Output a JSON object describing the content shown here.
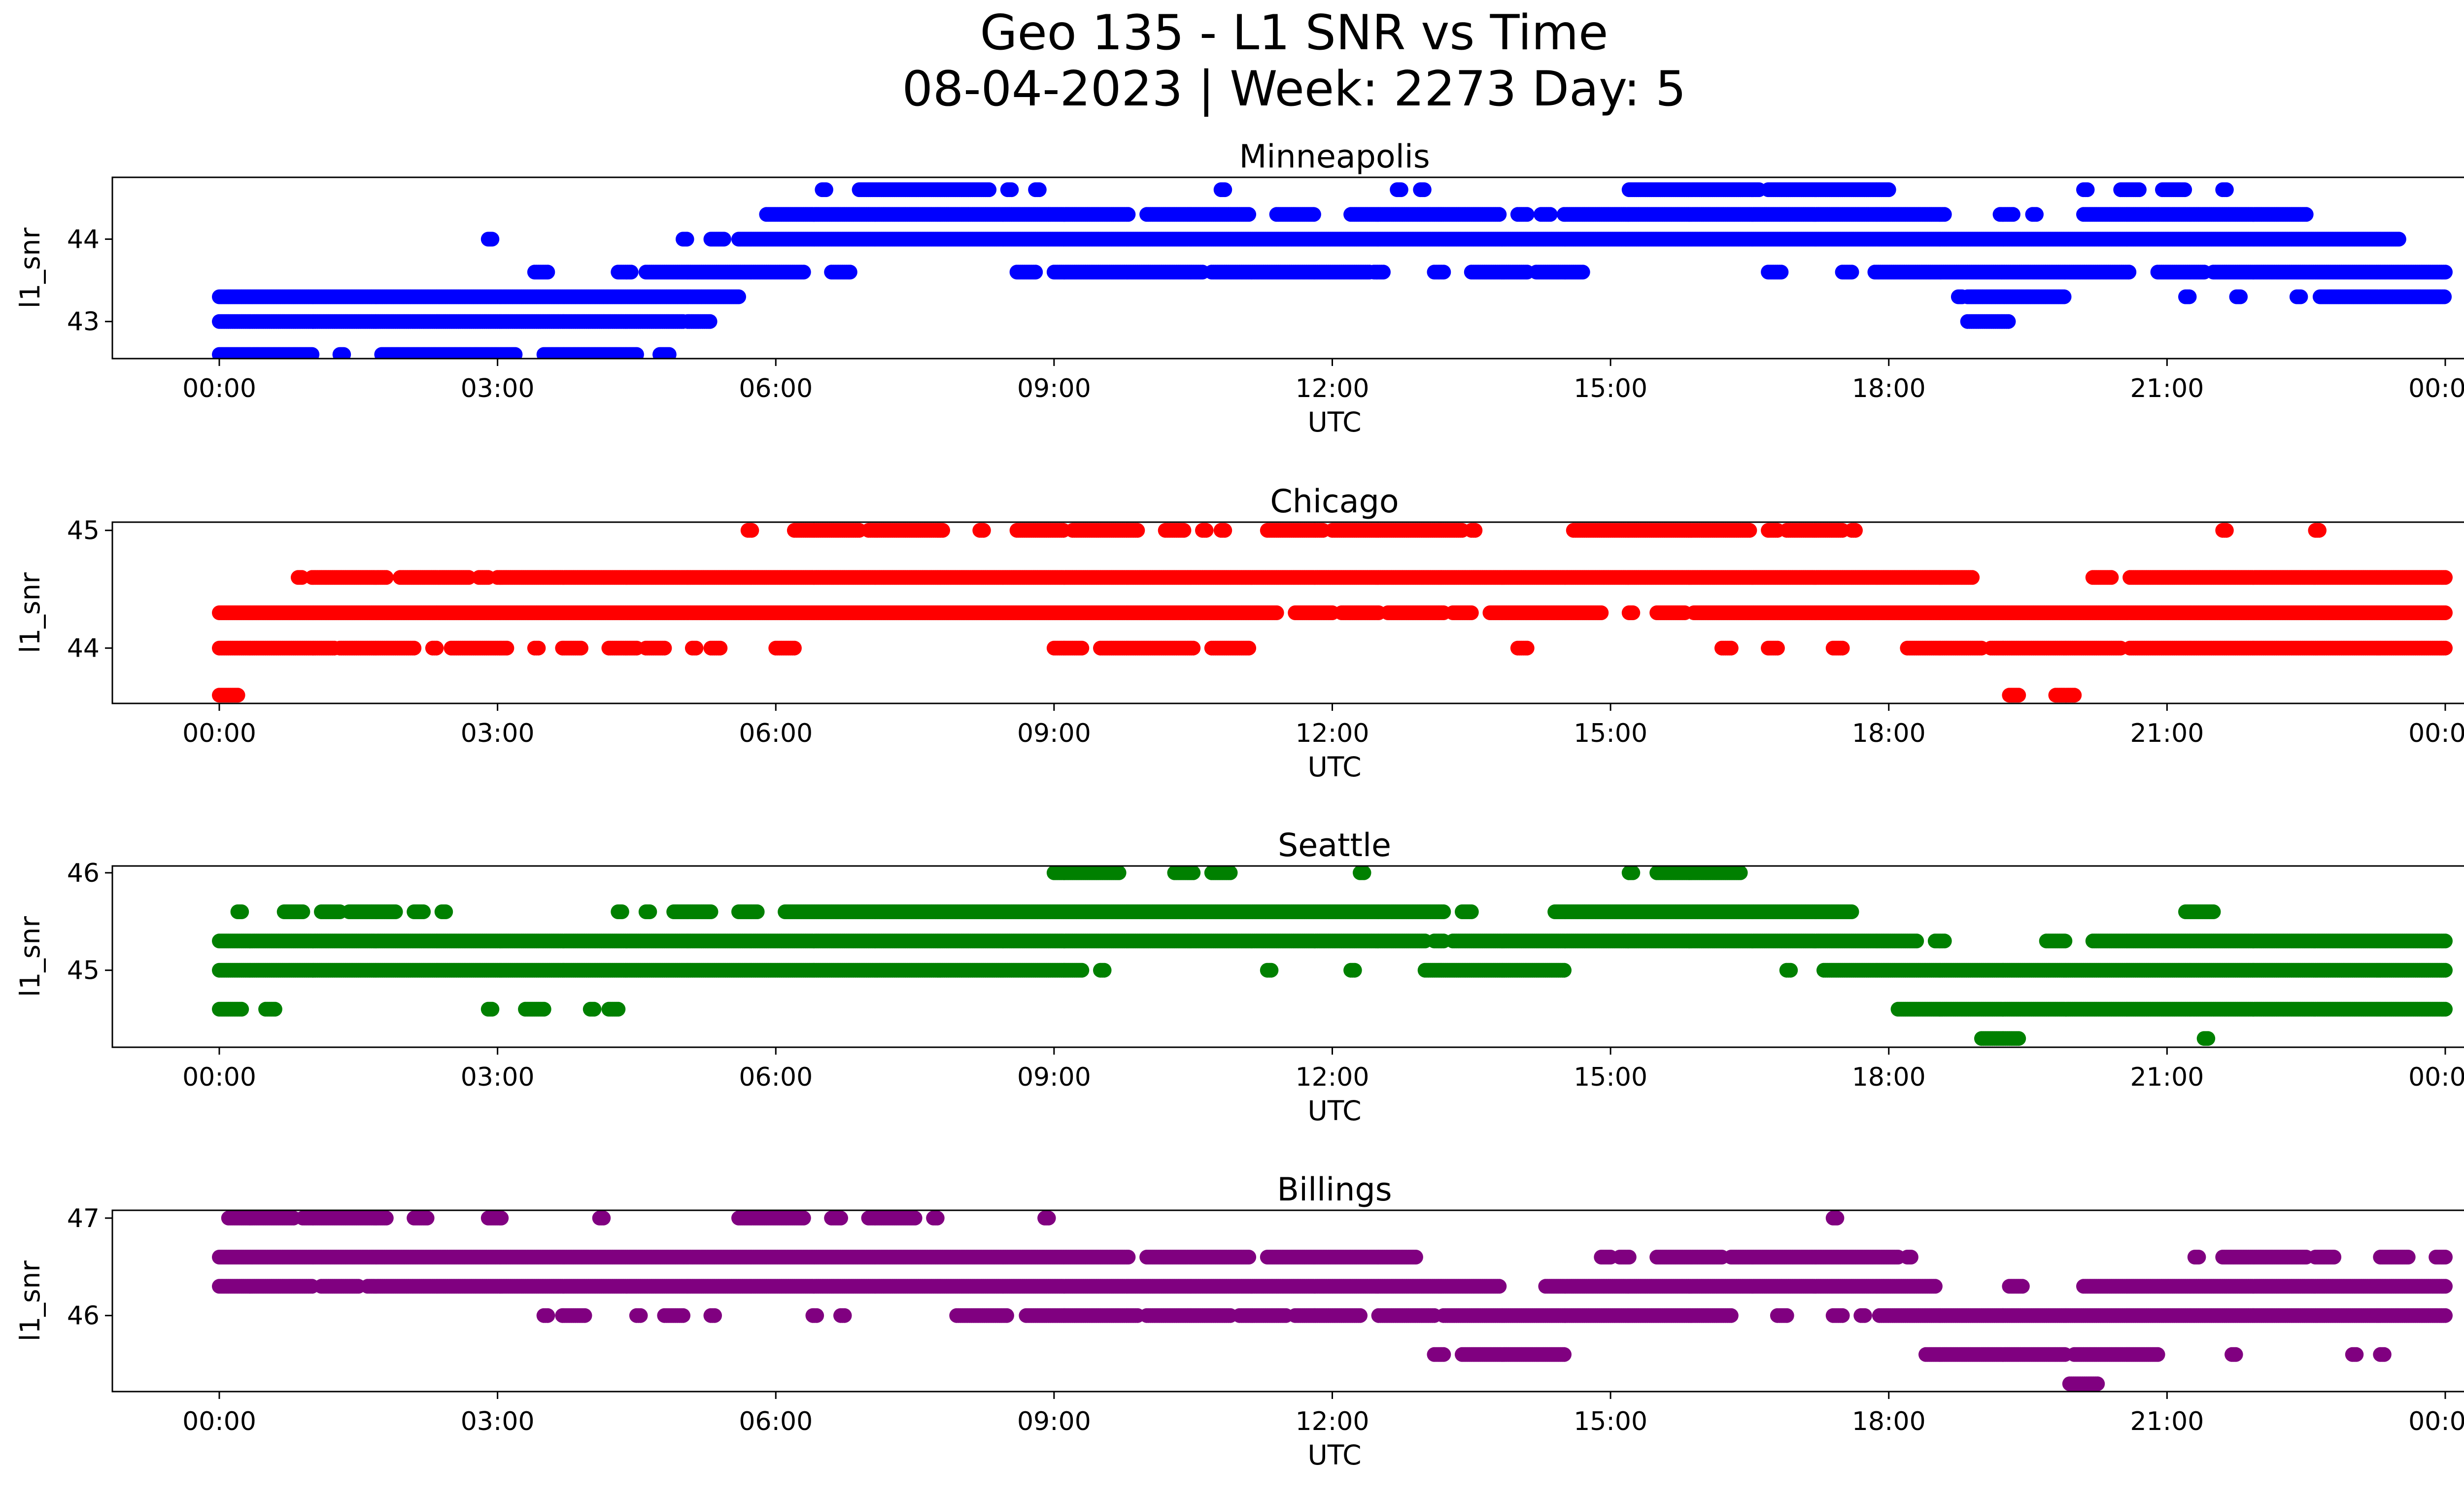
{
  "figure": {
    "title_line1": "Geo 135 - L1 SNR vs Time",
    "title_line2": "08-04-2023 | Week: 2273 Day: 5"
  },
  "chart_data": [
    {
      "type": "scatter",
      "title": "Minneapolis",
      "xlabel": "UTC",
      "ylabel": "l1_snr",
      "color": "#0000ff",
      "xlim": [
        "2023-08-04T00:00Z",
        "2023-08-05T00:00Z"
      ],
      "ylim": [
        42.55,
        44.75
      ],
      "yticks": [
        43,
        44
      ],
      "xticks": [
        "00:00",
        "03:00",
        "06:00",
        "09:00",
        "12:00",
        "15:00",
        "18:00",
        "21:00",
        "00:00"
      ],
      "x_unit": "hours UTC",
      "levels": [
        {
          "y": 42.6,
          "ranges": [
            [
              0.0,
              1.0
            ],
            [
              1.3,
              1.35
            ],
            [
              1.75,
              3.2
            ],
            [
              3.5,
              4.5
            ],
            [
              4.75,
              4.85
            ]
          ]
        },
        {
          "y": 43.0,
          "ranges": [
            [
              0.0,
              5.0
            ],
            [
              5.05,
              5.3
            ],
            [
              18.85,
              19.3
            ]
          ]
        },
        {
          "y": 43.3,
          "ranges": [
            [
              0.0,
              5.6
            ],
            [
              18.75,
              18.8
            ],
            [
              18.85,
              19.9
            ],
            [
              21.2,
              21.25
            ],
            [
              21.75,
              21.8
            ],
            [
              22.4,
              22.45
            ],
            [
              22.65,
              24.0
            ]
          ]
        },
        {
          "y": 43.6,
          "ranges": [
            [
              3.4,
              3.55
            ],
            [
              4.3,
              4.45
            ],
            [
              4.6,
              6.3
            ],
            [
              6.6,
              6.8
            ],
            [
              8.6,
              8.8
            ],
            [
              9.0,
              10.6
            ],
            [
              10.7,
              12.4
            ],
            [
              12.45,
              12.55
            ],
            [
              13.1,
              13.2
            ],
            [
              13.5,
              14.1
            ],
            [
              14.2,
              14.7
            ],
            [
              16.7,
              16.85
            ],
            [
              17.5,
              17.6
            ],
            [
              17.85,
              20.6
            ],
            [
              20.9,
              21.4
            ],
            [
              21.5,
              24.0
            ]
          ]
        },
        {
          "y": 44.0,
          "ranges": [
            [
              2.9,
              2.95
            ],
            [
              5.0,
              5.05
            ],
            [
              5.3,
              5.45
            ],
            [
              5.6,
              23.5
            ]
          ]
        },
        {
          "y": 44.3,
          "ranges": [
            [
              5.9,
              9.8
            ],
            [
              10.0,
              11.1
            ],
            [
              11.4,
              11.8
            ],
            [
              12.2,
              13.8
            ],
            [
              14.0,
              14.1
            ],
            [
              14.25,
              14.35
            ],
            [
              14.5,
              18.6
            ],
            [
              19.2,
              19.35
            ],
            [
              19.55,
              19.6
            ],
            [
              20.1,
              22.5
            ]
          ]
        },
        {
          "y": 44.6,
          "ranges": [
            [
              6.5,
              6.55
            ],
            [
              6.9,
              8.3
            ],
            [
              8.5,
              8.55
            ],
            [
              8.8,
              8.85
            ],
            [
              10.8,
              10.85
            ],
            [
              12.7,
              12.75
            ],
            [
              12.95,
              13.0
            ],
            [
              15.2,
              16.6
            ],
            [
              16.7,
              18.0
            ],
            [
              20.1,
              20.15
            ],
            [
              20.5,
              20.7
            ],
            [
              20.95,
              21.2
            ],
            [
              21.6,
              21.65
            ]
          ]
        }
      ]
    },
    {
      "type": "scatter",
      "title": "Chicago",
      "xlabel": "UTC",
      "ylabel": "l1_snr",
      "color": "#ff0000",
      "xlim": [
        "2023-08-04T00:00Z",
        "2023-08-05T00:00Z"
      ],
      "ylim": [
        43.53,
        45.07
      ],
      "yticks": [
        44,
        45
      ],
      "xticks": [
        "00:00",
        "03:00",
        "06:00",
        "09:00",
        "12:00",
        "15:00",
        "18:00",
        "21:00",
        "00:00"
      ],
      "x_unit": "hours UTC",
      "levels": [
        {
          "y": 43.6,
          "ranges": [
            [
              0.0,
              0.2
            ],
            [
              19.3,
              19.4
            ],
            [
              19.8,
              20.0
            ]
          ]
        },
        {
          "y": 44.0,
          "ranges": [
            [
              0.0,
              1.25
            ],
            [
              1.3,
              2.1
            ],
            [
              2.3,
              2.35
            ],
            [
              2.5,
              3.1
            ],
            [
              3.4,
              3.45
            ],
            [
              3.7,
              3.9
            ],
            [
              4.2,
              4.5
            ],
            [
              4.6,
              4.8
            ],
            [
              5.1,
              5.15
            ],
            [
              5.3,
              5.4
            ],
            [
              6.0,
              6.2
            ],
            [
              9.0,
              9.3
            ],
            [
              9.5,
              10.5
            ],
            [
              10.7,
              11.1
            ],
            [
              14.0,
              14.1
            ],
            [
              16.2,
              16.3
            ],
            [
              16.7,
              16.8
            ],
            [
              17.4,
              17.5
            ],
            [
              18.2,
              19.0
            ],
            [
              19.1,
              20.5
            ],
            [
              20.6,
              24.0
            ]
          ]
        },
        {
          "y": 44.3,
          "ranges": [
            [
              0.0,
              11.4
            ],
            [
              11.6,
              12.0
            ],
            [
              12.1,
              12.5
            ],
            [
              12.6,
              13.2
            ],
            [
              13.3,
              13.5
            ],
            [
              13.7,
              14.9
            ],
            [
              15.2,
              15.25
            ],
            [
              15.5,
              15.8
            ],
            [
              15.9,
              24.0
            ]
          ]
        },
        {
          "y": 44.6,
          "ranges": [
            [
              0.85,
              0.9
            ],
            [
              1.0,
              1.8
            ],
            [
              1.95,
              2.7
            ],
            [
              2.8,
              2.9
            ],
            [
              3.0,
              18.9
            ],
            [
              20.2,
              20.4
            ],
            [
              20.6,
              24.0
            ]
          ]
        },
        {
          "y": 45.0,
          "ranges": [
            [
              5.7,
              5.75
            ],
            [
              6.2,
              6.9
            ],
            [
              7.0,
              7.8
            ],
            [
              8.2,
              8.25
            ],
            [
              8.6,
              9.1
            ],
            [
              9.2,
              9.9
            ],
            [
              10.2,
              10.4
            ],
            [
              10.6,
              10.65
            ],
            [
              10.8,
              10.85
            ],
            [
              11.3,
              11.9
            ],
            [
              12.0,
              13.4
            ],
            [
              13.5,
              13.55
            ],
            [
              14.6,
              16.5
            ],
            [
              16.7,
              16.8
            ],
            [
              16.9,
              17.5
            ],
            [
              17.6,
              17.65
            ],
            [
              21.6,
              21.65
            ],
            [
              22.6,
              22.65
            ]
          ]
        }
      ]
    },
    {
      "type": "scatter",
      "title": "Seattle",
      "xlabel": "UTC",
      "ylabel": "l1_snr",
      "color": "#008000",
      "xlim": [
        "2023-08-04T00:00Z",
        "2023-08-05T00:00Z"
      ],
      "ylim": [
        44.21,
        46.07
      ],
      "yticks": [
        45,
        46
      ],
      "xticks": [
        "00:00",
        "03:00",
        "06:00",
        "09:00",
        "12:00",
        "15:00",
        "18:00",
        "21:00",
        "00:00"
      ],
      "x_unit": "hours UTC",
      "levels": [
        {
          "y": 44.3,
          "ranges": [
            [
              19.0,
              19.4
            ],
            [
              21.4,
              21.45
            ]
          ]
        },
        {
          "y": 44.6,
          "ranges": [
            [
              0.0,
              0.25
            ],
            [
              0.5,
              0.6
            ],
            [
              2.9,
              2.95
            ],
            [
              3.3,
              3.5
            ],
            [
              4.0,
              4.05
            ],
            [
              4.2,
              4.3
            ],
            [
              18.1,
              24.0
            ]
          ]
        },
        {
          "y": 45.0,
          "ranges": [
            [
              0.0,
              9.3
            ],
            [
              9.5,
              9.55
            ],
            [
              11.3,
              11.35
            ],
            [
              12.2,
              12.25
            ],
            [
              13.0,
              14.5
            ],
            [
              16.9,
              16.95
            ],
            [
              17.3,
              24.0
            ]
          ]
        },
        {
          "y": 45.3,
          "ranges": [
            [
              0.0,
              13.0
            ],
            [
              13.1,
              13.2
            ],
            [
              13.3,
              18.3
            ],
            [
              18.5,
              18.6
            ],
            [
              19.7,
              19.9
            ],
            [
              20.2,
              24.0
            ]
          ]
        },
        {
          "y": 45.6,
          "ranges": [
            [
              0.2,
              0.25
            ],
            [
              0.7,
              0.9
            ],
            [
              1.1,
              1.3
            ],
            [
              1.4,
              1.9
            ],
            [
              2.1,
              2.2
            ],
            [
              2.4,
              2.45
            ],
            [
              4.3,
              4.35
            ],
            [
              4.6,
              4.65
            ],
            [
              4.9,
              5.3
            ],
            [
              5.6,
              5.8
            ],
            [
              6.1,
              13.2
            ],
            [
              13.4,
              13.5
            ],
            [
              14.4,
              17.6
            ],
            [
              21.2,
              21.5
            ]
          ]
        },
        {
          "y": 46.0,
          "ranges": [
            [
              9.0,
              9.7
            ],
            [
              10.3,
              10.5
            ],
            [
              10.7,
              10.9
            ],
            [
              12.3,
              12.35
            ],
            [
              15.2,
              15.25
            ],
            [
              15.5,
              16.4
            ]
          ]
        }
      ]
    },
    {
      "type": "scatter",
      "title": "Billings",
      "xlabel": "UTC",
      "ylabel": "l1_snr",
      "color": "#800080",
      "xlim": [
        "2023-08-04T00:00Z",
        "2023-08-05T00:00Z"
      ],
      "ylim": [
        45.22,
        47.08
      ],
      "yticks": [
        46,
        47
      ],
      "xticks": [
        "00:00",
        "03:00",
        "06:00",
        "09:00",
        "12:00",
        "15:00",
        "18:00",
        "21:00",
        "00:00"
      ],
      "x_unit": "hours UTC",
      "levels": [
        {
          "y": 45.3,
          "ranges": [
            [
              19.95,
              20.25
            ]
          ]
        },
        {
          "y": 45.6,
          "ranges": [
            [
              13.1,
              13.2
            ],
            [
              13.4,
              14.5
            ],
            [
              18.4,
              19.9
            ],
            [
              20.0,
              20.9
            ],
            [
              21.7,
              21.75
            ],
            [
              23.0,
              23.05
            ],
            [
              23.3,
              23.35
            ]
          ]
        },
        {
          "y": 46.0,
          "ranges": [
            [
              3.5,
              3.55
            ],
            [
              3.7,
              3.95
            ],
            [
              4.5,
              4.55
            ],
            [
              4.8,
              5.0
            ],
            [
              5.3,
              5.35
            ],
            [
              6.4,
              6.45
            ],
            [
              6.7,
              6.75
            ],
            [
              7.95,
              8.5
            ],
            [
              8.7,
              9.9
            ],
            [
              10.0,
              10.9
            ],
            [
              11.0,
              11.5
            ],
            [
              11.6,
              12.3
            ],
            [
              12.5,
              13.1
            ],
            [
              13.2,
              16.3
            ],
            [
              16.8,
              16.9
            ],
            [
              17.4,
              17.5
            ],
            [
              17.7,
              17.75
            ],
            [
              17.9,
              24.0
            ]
          ]
        },
        {
          "y": 46.3,
          "ranges": [
            [
              0.0,
              1.0
            ],
            [
              1.1,
              1.5
            ],
            [
              1.6,
              13.8
            ],
            [
              14.3,
              18.5
            ],
            [
              19.3,
              19.45
            ],
            [
              20.1,
              24.0
            ]
          ]
        },
        {
          "y": 46.6,
          "ranges": [
            [
              0.0,
              9.8
            ],
            [
              10.0,
              11.1
            ],
            [
              11.3,
              12.9
            ],
            [
              14.9,
              15.0
            ],
            [
              15.1,
              15.2
            ],
            [
              15.5,
              16.2
            ],
            [
              16.3,
              18.1
            ],
            [
              18.2,
              18.25
            ],
            [
              21.3,
              21.35
            ],
            [
              21.6,
              22.5
            ],
            [
              22.6,
              22.8
            ],
            [
              23.3,
              23.6
            ],
            [
              23.9,
              24.0
            ]
          ]
        },
        {
          "y": 47.0,
          "ranges": [
            [
              0.1,
              0.8
            ],
            [
              0.9,
              1.8
            ],
            [
              2.1,
              2.25
            ],
            [
              2.9,
              3.05
            ],
            [
              4.1,
              4.15
            ],
            [
              5.6,
              6.3
            ],
            [
              6.6,
              6.7
            ],
            [
              7.0,
              7.5
            ],
            [
              7.7,
              7.75
            ],
            [
              8.9,
              8.95
            ],
            [
              17.4,
              17.45
            ]
          ]
        }
      ]
    }
  ]
}
